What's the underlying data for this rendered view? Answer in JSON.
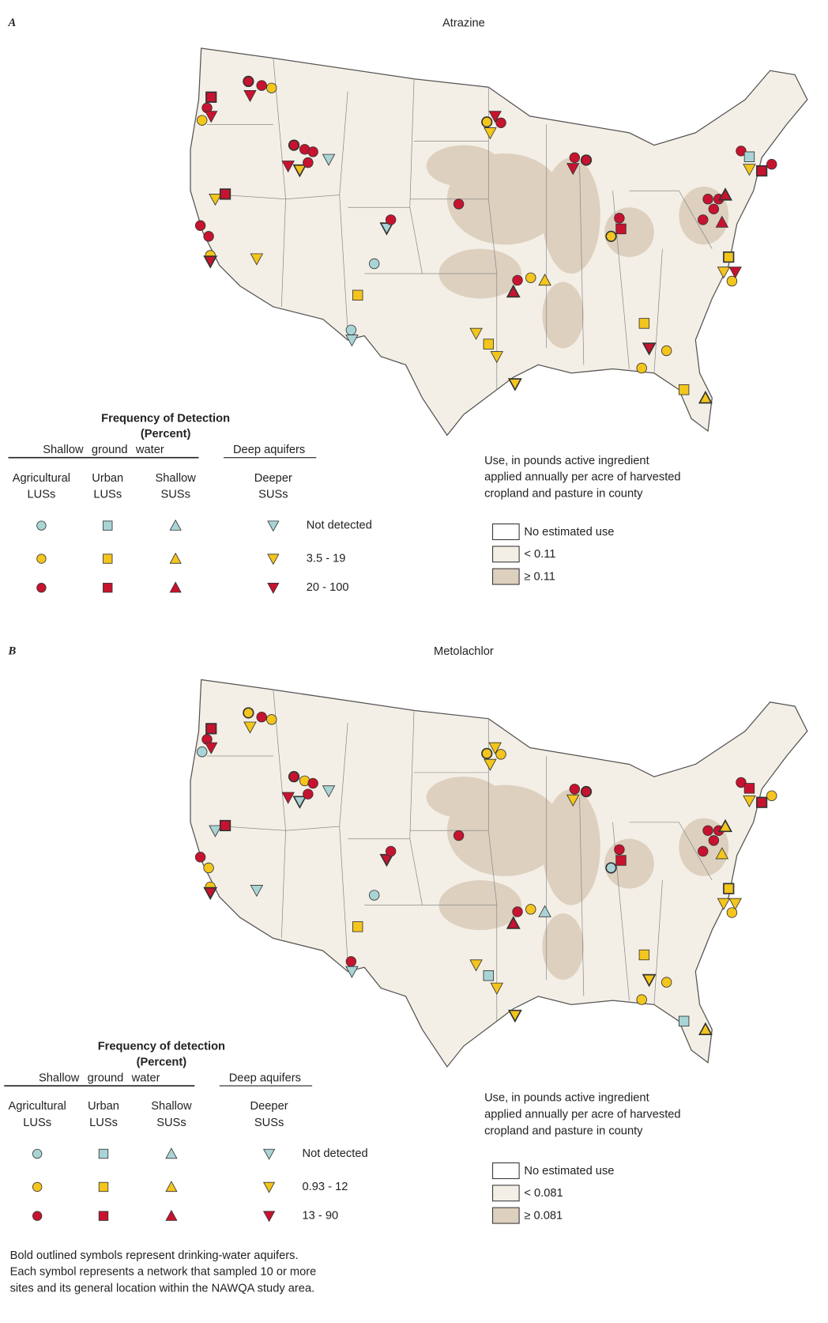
{
  "panels": [
    {
      "label": "A",
      "title": "Atrazine",
      "legend": {
        "title": "Frequency of Detection",
        "subtitle": "(Percent)",
        "group_shallow": "Shallow ground water",
        "group_deep": "Deep aquifers",
        "columns": [
          [
            "Agricultural",
            "LUSs"
          ],
          [
            "Urban",
            "LUSs"
          ],
          [
            "Shallow",
            "SUSs"
          ],
          [
            "Deeper",
            "SUSs"
          ]
        ],
        "rows": [
          "Not detected",
          "3.5 - 19",
          "20 - 100"
        ],
        "symbol_colors": [
          "#a9d4d6",
          "#f3c51d",
          "#c7132f"
        ]
      },
      "use_legend": {
        "title_lines": [
          "Use, in pounds active ingredient",
          "applied annually per acre of harvested",
          "cropland and pasture in county"
        ],
        "classes": [
          "No estimated use",
          "< 0.11",
          "≥ 0.11"
        ],
        "class_colors": [
          "#ffffff",
          "#f4efe6",
          "#ddd0bf"
        ]
      }
    },
    {
      "label": "B",
      "title": "Metolachlor",
      "legend": {
        "title": "Frequency of detection",
        "subtitle": "(Percent)",
        "group_shallow": "Shallow ground water",
        "group_deep": "Deep aquifers",
        "columns": [
          [
            "Agricultural",
            "LUSs"
          ],
          [
            "Urban",
            "LUSs"
          ],
          [
            "Shallow",
            "SUSs"
          ],
          [
            "Deeper",
            "SUSs"
          ]
        ],
        "rows": [
          "Not detected",
          "0.93 - 12",
          "13 - 90"
        ],
        "symbol_colors": [
          "#a9d4d6",
          "#f3c51d",
          "#c7132f"
        ]
      },
      "use_legend": {
        "title_lines": [
          "Use, in pounds active ingredient",
          "applied annually per acre of harvested",
          "cropland and pasture in county"
        ],
        "classes": [
          "No estimated use",
          "< 0.081",
          "≥ 0.081"
        ],
        "class_colors": [
          "#ffffff",
          "#f4efe6",
          "#ddd0bf"
        ]
      }
    }
  ],
  "footnote": [
    "Bold outlined symbols represent drinking-water aquifers.",
    "Each symbol represents a network that sampled 10 or more",
    "sites and its general location within the NAWQA study area."
  ]
}
